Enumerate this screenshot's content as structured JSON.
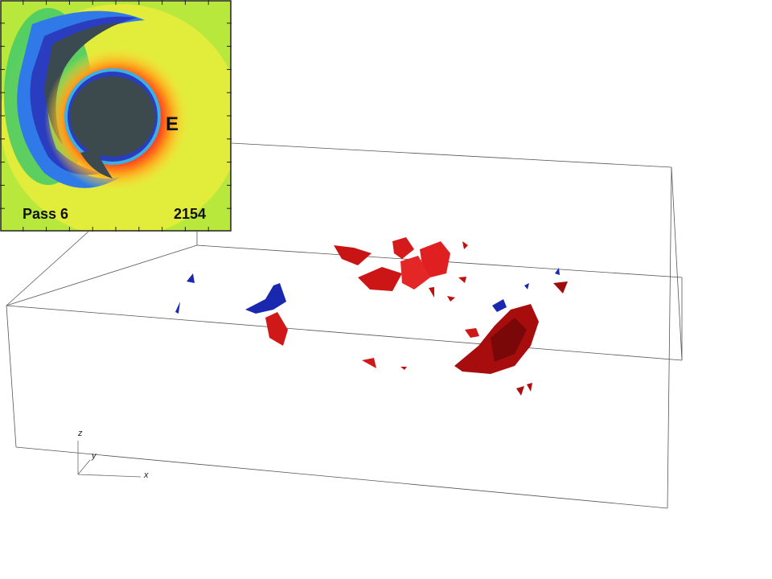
{
  "inset": {
    "marker": "E",
    "pass": "Pass 6",
    "time": "2154"
  },
  "axes": {
    "z": "z",
    "y": "y",
    "x": "x"
  }
}
